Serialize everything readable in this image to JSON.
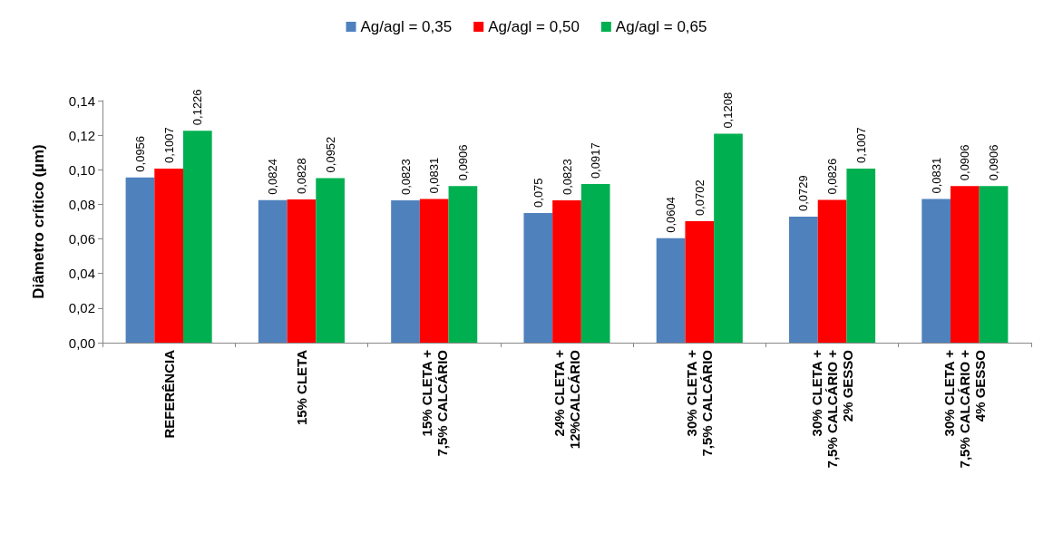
{
  "chart_data": {
    "type": "bar",
    "ylabel": "Diâmetro crítico (µm)",
    "categories": [
      "REFERÊNCIA",
      "15% CLETA",
      "15% CLETA +\n7,5% CALCÁRIO",
      "24% CLETA +\n12%CALCÁRIO",
      "30% CLETA +\n7,5% CALCÁRIO",
      "30% CLETA +\n7,5% CALCÁRIO +\n2% GESSO",
      "30% CLETA +\n7,5% CALCÁRIO +\n4% GESSO"
    ],
    "series": [
      {
        "name": "Ag/agl = 0,35",
        "color": "#4f81bd",
        "values": [
          0.0956,
          0.0824,
          0.0823,
          0.075,
          0.0604,
          0.0729,
          0.0831
        ],
        "value_labels": [
          "0,0956",
          "0,0824",
          "0,0823",
          "0,075",
          "0,0604",
          "0,0729",
          "0,0831"
        ]
      },
      {
        "name": "Ag/agl = 0,50",
        "color": "#ff0000",
        "values": [
          0.1007,
          0.0828,
          0.0831,
          0.0823,
          0.0702,
          0.0826,
          0.0906
        ],
        "value_labels": [
          "0,1007",
          "0,0828",
          "0,0831",
          "0,0823",
          "0,0702",
          "0,0826",
          "0,0906"
        ]
      },
      {
        "name": "Ag/agl = 0,65",
        "color": "#00b050",
        "values": [
          0.1226,
          0.0952,
          0.0906,
          0.0917,
          0.1208,
          0.1007,
          0.0906
        ],
        "value_labels": [
          "0,1226",
          "0,0952",
          "0,0906",
          "0,0917",
          "0,1208",
          "0,1007",
          "0,0906"
        ]
      }
    ],
    "ylim": [
      0,
      0.14
    ],
    "yticks": [
      {
        "value": 0,
        "label": "0,00"
      },
      {
        "value": 0.02,
        "label": "0,02"
      },
      {
        "value": 0.04,
        "label": "0,04"
      },
      {
        "value": 0.06,
        "label": "0,06"
      },
      {
        "value": 0.08,
        "label": "0,08"
      },
      {
        "value": 0.1,
        "label": "0,10"
      },
      {
        "value": 0.12,
        "label": "0,12"
      },
      {
        "value": 0.14,
        "label": "0,14"
      }
    ],
    "grid": false,
    "legend": "top"
  }
}
